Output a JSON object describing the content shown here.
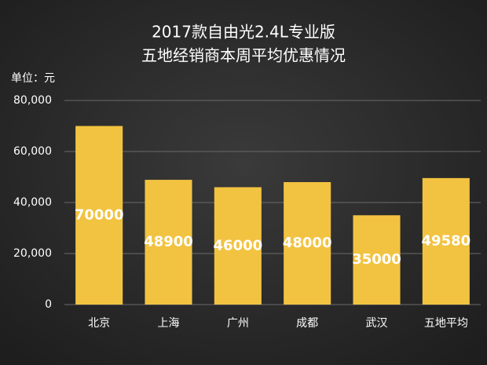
{
  "chart_data": {
    "type": "bar",
    "title": [
      "2017款自由光2.4L专业版",
      "五地经销商本周平均优惠情况"
    ],
    "y_label": "单位：元",
    "categories": [
      "北京",
      "上海",
      "广州",
      "成都",
      "武汉",
      "五地平均"
    ],
    "values": [
      70000,
      48900,
      46000,
      48000,
      35000,
      49580
    ],
    "color": "#f2c341",
    "ylim": [
      0,
      80000
    ],
    "yticks": [
      0,
      {
        "value": 20000,
        "label": "20,000"
      },
      {
        "value": 40000,
        "label": "40,000"
      },
      {
        "value": 60000,
        "label": "60,000"
      },
      {
        "value": 80000,
        "label": "80,000"
      }
    ],
    "grid": true
  }
}
